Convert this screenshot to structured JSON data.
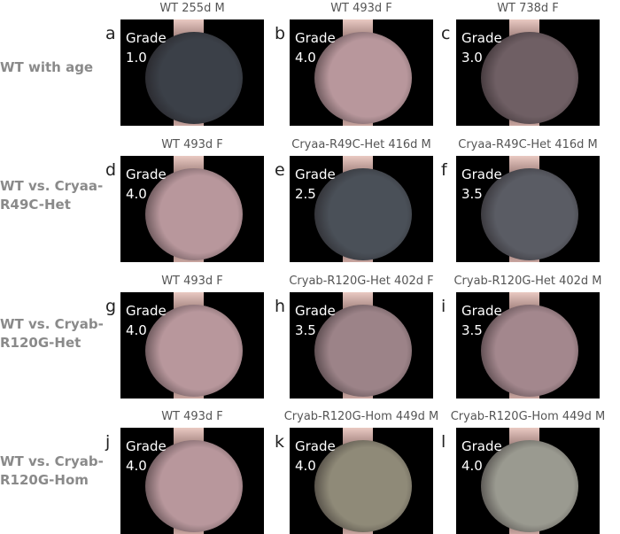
{
  "rows": [
    {
      "label": "WT with age",
      "panels": [
        {
          "letter": "a",
          "title": "WT 255d M",
          "grade_label": "Grade",
          "grade": "1.0",
          "tone": "#3b4048"
        },
        {
          "letter": "b",
          "title": "WT 493d F",
          "grade_label": "Grade",
          "grade": "4.0",
          "tone": "#b8979c"
        },
        {
          "letter": "c",
          "title": "WT 738d F",
          "grade_label": "Grade",
          "grade": "3.0",
          "tone": "#6f5f64"
        }
      ]
    },
    {
      "label": "WT vs. Cryaa-R49C-Het",
      "panels": [
        {
          "letter": "d",
          "title": "WT 493d F",
          "grade_label": "Grade",
          "grade": "4.0",
          "tone": "#b8979c"
        },
        {
          "letter": "e",
          "title": "Cryaa-R49C-Het 416d M",
          "grade_label": "Grade",
          "grade": "2.5",
          "tone": "#4a5058"
        },
        {
          "letter": "f",
          "title": "Cryaa-R49C-Het 416d M",
          "grade_label": "Grade",
          "grade": "3.5",
          "tone": "#5a5c64"
        }
      ]
    },
    {
      "label": "WT vs. Cryab-R120G-Het",
      "panels": [
        {
          "letter": "g",
          "title": "WT 493d F",
          "grade_label": "Grade",
          "grade": "4.0",
          "tone": "#b8979c"
        },
        {
          "letter": "h",
          "title": "Cryab-R120G-Het 402d F",
          "grade_label": "Grade",
          "grade": "3.5",
          "tone": "#9c8388"
        },
        {
          "letter": "i",
          "title": "Cryab-R120G-Het 402d M",
          "grade_label": "Grade",
          "grade": "3.5",
          "tone": "#a3878d"
        }
      ]
    },
    {
      "label": "WT vs. Cryab-R120G-Hom",
      "panels": [
        {
          "letter": "j",
          "title": "WT 493d F",
          "grade_label": "Grade",
          "grade": "4.0",
          "tone": "#b8979c"
        },
        {
          "letter": "k",
          "title": "Cryab-R120G-Hom 449d M",
          "grade_label": "Grade",
          "grade": "4.0",
          "tone": "#8f8a78"
        },
        {
          "letter": "l",
          "title": "Cryab-R120G-Hom 449d M",
          "grade_label": "Grade",
          "grade": "4.0",
          "tone": "#9a9a90"
        }
      ]
    }
  ]
}
